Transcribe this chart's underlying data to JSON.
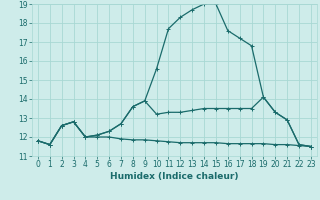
{
  "title": "",
  "xlabel": "Humidex (Indice chaleur)",
  "bg_color": "#ceecea",
  "grid_color": "#a8d8d4",
  "line_color": "#1a6b6b",
  "x_min": 0,
  "x_max": 23,
  "y_min": 11,
  "y_max": 19,
  "line1_x": [
    0,
    1,
    2,
    3,
    4,
    5,
    6,
    7,
    8,
    9,
    10,
    11,
    12,
    13,
    14,
    15,
    16,
    17,
    18,
    19,
    20,
    21,
    22,
    23
  ],
  "line1_y": [
    11.8,
    11.6,
    12.6,
    12.8,
    12.0,
    12.0,
    12.0,
    11.9,
    11.85,
    11.85,
    11.8,
    11.75,
    11.7,
    11.7,
    11.7,
    11.7,
    11.65,
    11.65,
    11.65,
    11.65,
    11.6,
    11.6,
    11.55,
    11.5
  ],
  "line2_x": [
    0,
    1,
    2,
    3,
    4,
    5,
    6,
    7,
    8,
    9,
    10,
    11,
    12,
    13,
    14,
    15,
    16,
    17,
    18,
    19,
    20,
    21,
    22,
    23
  ],
  "line2_y": [
    11.8,
    11.6,
    12.6,
    12.8,
    12.0,
    12.1,
    12.3,
    12.7,
    13.6,
    13.9,
    13.2,
    13.3,
    13.3,
    13.4,
    13.5,
    13.5,
    13.5,
    13.5,
    13.5,
    14.1,
    13.3,
    12.9,
    11.6,
    11.5
  ],
  "line3_x": [
    0,
    1,
    2,
    3,
    4,
    5,
    6,
    7,
    8,
    9,
    10,
    11,
    12,
    13,
    14,
    15,
    16,
    17,
    18,
    19,
    20,
    21,
    22,
    23
  ],
  "line3_y": [
    11.8,
    11.6,
    12.6,
    12.8,
    12.0,
    12.1,
    12.3,
    12.7,
    13.6,
    13.9,
    15.6,
    17.7,
    18.3,
    18.7,
    19.0,
    19.0,
    17.6,
    17.2,
    16.8,
    14.1,
    13.3,
    12.9,
    11.6,
    11.5
  ],
  "tick_fontsize": 5.5,
  "xlabel_fontsize": 6.5,
  "linewidth": 0.9,
  "markersize": 3.0
}
